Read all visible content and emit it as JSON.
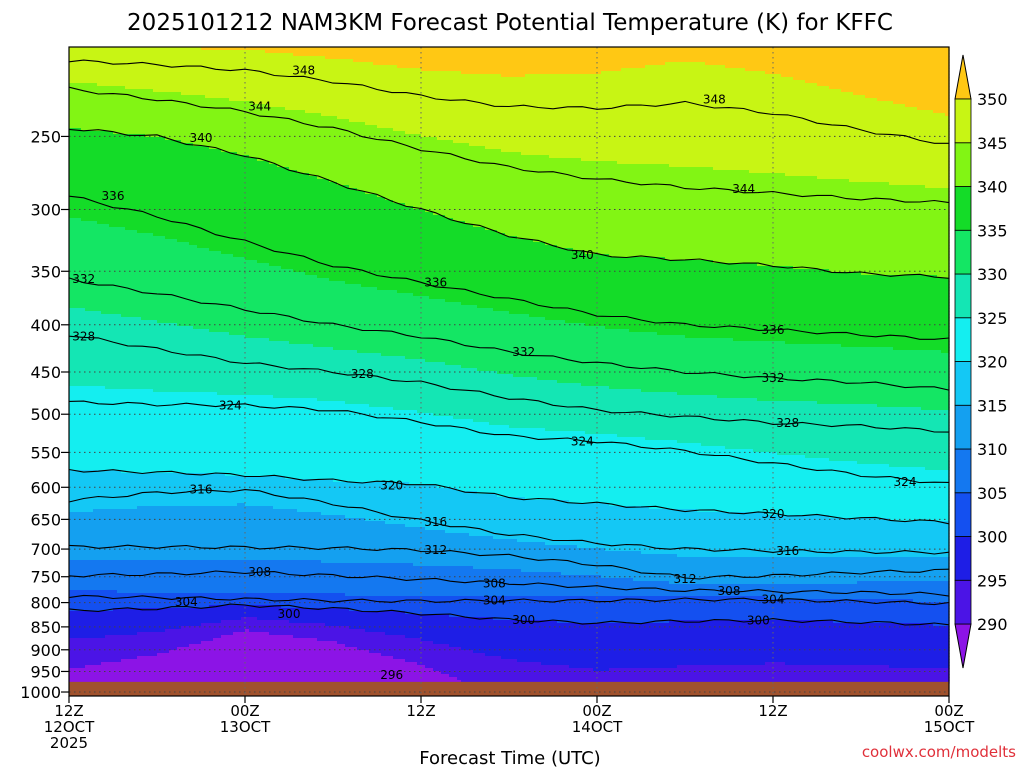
{
  "chart_data": {
    "type": "heatmap",
    "title": "2025101212 NAM3KM Forecast Potential Temperature (K) for KFFC",
    "xlabel": "Forecast Time (UTC)",
    "ylabel": "",
    "x_ticks": [
      {
        "hour": "12Z",
        "date": "12OCT",
        "year": "2025"
      },
      {
        "hour": "00Z",
        "date": "13OCT",
        "year": ""
      },
      {
        "hour": "12Z",
        "date": "",
        "year": ""
      },
      {
        "hour": "00Z",
        "date": "14OCT",
        "year": ""
      },
      {
        "hour": "12Z",
        "date": "",
        "year": ""
      },
      {
        "hour": "00Z",
        "date": "15OCT",
        "year": ""
      }
    ],
    "y_ticks": [
      250,
      300,
      350,
      400,
      450,
      500,
      550,
      600,
      650,
      700,
      750,
      800,
      850,
      900,
      950,
      1000
    ],
    "xlim": [
      0,
      60
    ],
    "ylim": [
      1010,
      200
    ],
    "colorbar": {
      "ticks": [
        290,
        295,
        300,
        305,
        310,
        315,
        320,
        325,
        330,
        335,
        340,
        345,
        350
      ],
      "colors": [
        "#8c14e6",
        "#4b14e6",
        "#1e1ee6",
        "#1450f0",
        "#1478f0",
        "#14a0f0",
        "#14c8f5",
        "#14eef0",
        "#14e6b4",
        "#14e664",
        "#14dc28",
        "#82f514",
        "#c8f514",
        "#ffff14",
        "#ffc814"
      ]
    },
    "grid": true,
    "contour_levels": [
      296,
      300,
      304,
      308,
      312,
      316,
      320,
      324,
      328,
      332,
      336,
      340,
      344,
      348
    ],
    "contour_labels": [
      {
        "value": "348",
        "hour": 16,
        "p": 212
      },
      {
        "value": "348",
        "hour": 44,
        "p": 228
      },
      {
        "value": "344",
        "hour": 13,
        "p": 232
      },
      {
        "value": "344",
        "hour": 46,
        "p": 285
      },
      {
        "value": "340",
        "hour": 9,
        "p": 251
      },
      {
        "value": "340",
        "hour": 35,
        "p": 336
      },
      {
        "value": "336",
        "hour": 3,
        "p": 290
      },
      {
        "value": "336",
        "hour": 25,
        "p": 360
      },
      {
        "value": "336",
        "hour": 48,
        "p": 405
      },
      {
        "value": "332",
        "hour": 1,
        "p": 357
      },
      {
        "value": "332",
        "hour": 31,
        "p": 428
      },
      {
        "value": "332",
        "hour": 48,
        "p": 457
      },
      {
        "value": "328",
        "hour": 1,
        "p": 412
      },
      {
        "value": "328",
        "hour": 20,
        "p": 452
      },
      {
        "value": "328",
        "hour": 49,
        "p": 511
      },
      {
        "value": "324",
        "hour": 11,
        "p": 489
      },
      {
        "value": "324",
        "hour": 35,
        "p": 535
      },
      {
        "value": "324",
        "hour": 57,
        "p": 592
      },
      {
        "value": "320",
        "hour": 22,
        "p": 597
      },
      {
        "value": "320",
        "hour": 48,
        "p": 641
      },
      {
        "value": "316",
        "hour": 9,
        "p": 603
      },
      {
        "value": "316",
        "hour": 25,
        "p": 654
      },
      {
        "value": "316",
        "hour": 49,
        "p": 703
      },
      {
        "value": "312",
        "hour": 25,
        "p": 702
      },
      {
        "value": "312",
        "hour": 42,
        "p": 754
      },
      {
        "value": "308",
        "hour": 13,
        "p": 741
      },
      {
        "value": "308",
        "hour": 29,
        "p": 763
      },
      {
        "value": "308",
        "hour": 45,
        "p": 777
      },
      {
        "value": "304",
        "hour": 8,
        "p": 799
      },
      {
        "value": "304",
        "hour": 29,
        "p": 796
      },
      {
        "value": "304",
        "hour": 48,
        "p": 794
      },
      {
        "value": "300",
        "hour": 15,
        "p": 823
      },
      {
        "value": "300",
        "hour": 31,
        "p": 836
      },
      {
        "value": "300",
        "hour": 47,
        "p": 837
      },
      {
        "value": "296",
        "hour": 22,
        "p": 958
      }
    ],
    "isentropes": [
      {
        "level": 300,
        "pts": [
          [
            0,
            816
          ],
          [
            6,
            812
          ],
          [
            12,
            805
          ],
          [
            18,
            812
          ],
          [
            24,
            822
          ],
          [
            30,
            835
          ],
          [
            36,
            842
          ],
          [
            42,
            838
          ],
          [
            48,
            836
          ],
          [
            54,
            840
          ],
          [
            60,
            846
          ]
        ]
      },
      {
        "level": 304,
        "pts": [
          [
            0,
            788
          ],
          [
            6,
            790
          ],
          [
            12,
            793
          ],
          [
            18,
            796
          ],
          [
            24,
            797
          ],
          [
            30,
            796
          ],
          [
            36,
            796
          ],
          [
            42,
            794
          ],
          [
            48,
            794
          ],
          [
            54,
            798
          ],
          [
            60,
            802
          ]
        ]
      },
      {
        "level": 308,
        "pts": [
          [
            0,
            748
          ],
          [
            6,
            745
          ],
          [
            12,
            741
          ],
          [
            18,
            748
          ],
          [
            24,
            755
          ],
          [
            30,
            762
          ],
          [
            36,
            770
          ],
          [
            42,
            776
          ],
          [
            48,
            778
          ],
          [
            54,
            780
          ],
          [
            60,
            784
          ]
        ]
      },
      {
        "level": 312,
        "pts": [
          [
            0,
            696
          ],
          [
            6,
            696
          ],
          [
            12,
            697
          ],
          [
            18,
            698
          ],
          [
            24,
            702
          ],
          [
            30,
            712
          ],
          [
            36,
            728
          ],
          [
            42,
            752
          ],
          [
            48,
            748
          ],
          [
            54,
            742
          ],
          [
            60,
            738
          ]
        ]
      },
      {
        "level": 316,
        "pts": [
          [
            0,
            620
          ],
          [
            6,
            608
          ],
          [
            12,
            604
          ],
          [
            18,
            625
          ],
          [
            24,
            652
          ],
          [
            30,
            675
          ],
          [
            36,
            690
          ],
          [
            42,
            700
          ],
          [
            48,
            703
          ],
          [
            54,
            705
          ],
          [
            60,
            706
          ]
        ]
      },
      {
        "level": 320,
        "pts": [
          [
            0,
            575
          ],
          [
            6,
            578
          ],
          [
            12,
            582
          ],
          [
            18,
            590
          ],
          [
            24,
            595
          ],
          [
            30,
            615
          ],
          [
            36,
            625
          ],
          [
            42,
            635
          ],
          [
            48,
            641
          ],
          [
            54,
            648
          ],
          [
            60,
            655
          ]
        ]
      },
      {
        "level": 324,
        "pts": [
          [
            0,
            485
          ],
          [
            6,
            488
          ],
          [
            12,
            489
          ],
          [
            18,
            495
          ],
          [
            24,
            510
          ],
          [
            30,
            528
          ],
          [
            36,
            535
          ],
          [
            42,
            548
          ],
          [
            48,
            565
          ],
          [
            54,
            582
          ],
          [
            60,
            595
          ]
        ]
      },
      {
        "level": 328,
        "pts": [
          [
            0,
            410
          ],
          [
            6,
            425
          ],
          [
            12,
            440
          ],
          [
            18,
            450
          ],
          [
            24,
            462
          ],
          [
            30,
            480
          ],
          [
            36,
            495
          ],
          [
            42,
            503
          ],
          [
            48,
            511
          ],
          [
            54,
            515
          ],
          [
            60,
            522
          ]
        ]
      },
      {
        "level": 332,
        "pts": [
          [
            0,
            357
          ],
          [
            6,
            370
          ],
          [
            12,
            385
          ],
          [
            18,
            400
          ],
          [
            24,
            412
          ],
          [
            30,
            428
          ],
          [
            36,
            440
          ],
          [
            42,
            450
          ],
          [
            48,
            457
          ],
          [
            54,
            462
          ],
          [
            60,
            470
          ]
        ]
      },
      {
        "level": 336,
        "pts": [
          [
            0,
            290
          ],
          [
            6,
            305
          ],
          [
            12,
            325
          ],
          [
            18,
            345
          ],
          [
            24,
            360
          ],
          [
            30,
            375
          ],
          [
            36,
            390
          ],
          [
            42,
            400
          ],
          [
            48,
            405
          ],
          [
            54,
            410
          ],
          [
            60,
            415
          ]
        ]
      },
      {
        "level": 340,
        "pts": [
          [
            0,
            245
          ],
          [
            6,
            250
          ],
          [
            12,
            262
          ],
          [
            18,
            280
          ],
          [
            24,
            300
          ],
          [
            30,
            320
          ],
          [
            36,
            336
          ],
          [
            42,
            340
          ],
          [
            48,
            345
          ],
          [
            54,
            352
          ],
          [
            60,
            355
          ]
        ]
      },
      {
        "level": 344,
        "pts": [
          [
            0,
            222
          ],
          [
            6,
            228
          ],
          [
            12,
            235
          ],
          [
            18,
            245
          ],
          [
            24,
            258
          ],
          [
            30,
            270
          ],
          [
            36,
            278
          ],
          [
            42,
            284
          ],
          [
            48,
            288
          ],
          [
            54,
            292
          ],
          [
            60,
            295
          ]
        ]
      },
      {
        "level": 348,
        "pts": [
          [
            0,
            207
          ],
          [
            6,
            209
          ],
          [
            12,
            212
          ],
          [
            18,
            218
          ],
          [
            24,
            226
          ],
          [
            30,
            232
          ],
          [
            36,
            233
          ],
          [
            42,
            230
          ],
          [
            48,
            236
          ],
          [
            54,
            246
          ],
          [
            60,
            255
          ]
        ]
      }
    ]
  },
  "credit": "coolwx.com/modelts"
}
